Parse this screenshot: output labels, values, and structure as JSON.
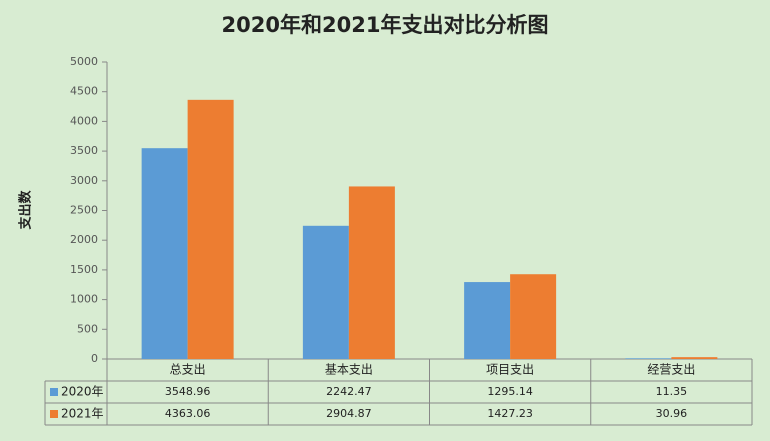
{
  "chart_data": {
    "type": "bar",
    "title": "2020年和2021年支出对比分析图",
    "y_label": "支出数",
    "categories": [
      "总支出",
      "基本支出",
      "项目支出",
      "经营支出"
    ],
    "series": [
      {
        "name": "2020年",
        "color": "#5b9bd5",
        "values": [
          3548.96,
          2242.47,
          1295.14,
          11.35
        ]
      },
      {
        "name": "2021年",
        "color": "#ed7d31",
        "values": [
          4363.06,
          2904.87,
          1427.23,
          30.96
        ]
      }
    ],
    "ylim": [
      0,
      5000
    ],
    "yticks": [
      0,
      500,
      1000,
      1500,
      2000,
      2500,
      3000,
      3500,
      4000,
      4500,
      5000
    ],
    "grid": false,
    "legend": "table"
  }
}
